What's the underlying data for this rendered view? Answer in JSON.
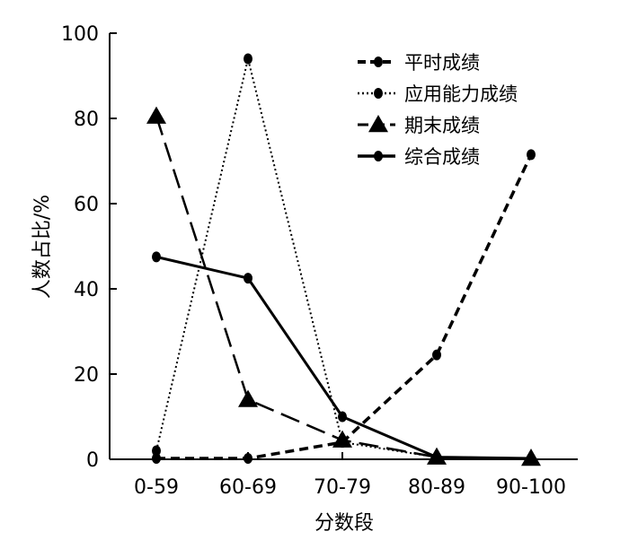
{
  "chart_data": {
    "type": "line",
    "title": "",
    "xlabel": "分数段",
    "ylabel": "人数占比/%",
    "categories": [
      "0-59",
      "60-69",
      "70-79",
      "80-89",
      "90-100"
    ],
    "ylim": [
      0,
      100
    ],
    "yticks": [
      0,
      20,
      40,
      60,
      80,
      100
    ],
    "grid": false,
    "legend_position": "top-right",
    "series": [
      {
        "name": "平时成绩",
        "style": "dashed",
        "marker": "circle",
        "values": [
          0.2,
          0.2,
          4,
          24.5,
          71.5
        ]
      },
      {
        "name": "应用能力成绩",
        "style": "dotted",
        "marker": "circle",
        "values": [
          2,
          94,
          4,
          0.5,
          0.2
        ]
      },
      {
        "name": "期末成绩",
        "style": "long-dashed",
        "marker": "triangle",
        "values": [
          80.5,
          14,
          4.5,
          0.5,
          0.2
        ]
      },
      {
        "name": "综合成绩",
        "style": "solid",
        "marker": "circle",
        "values": [
          47.5,
          42.5,
          10,
          0.5,
          0.2
        ]
      }
    ]
  }
}
